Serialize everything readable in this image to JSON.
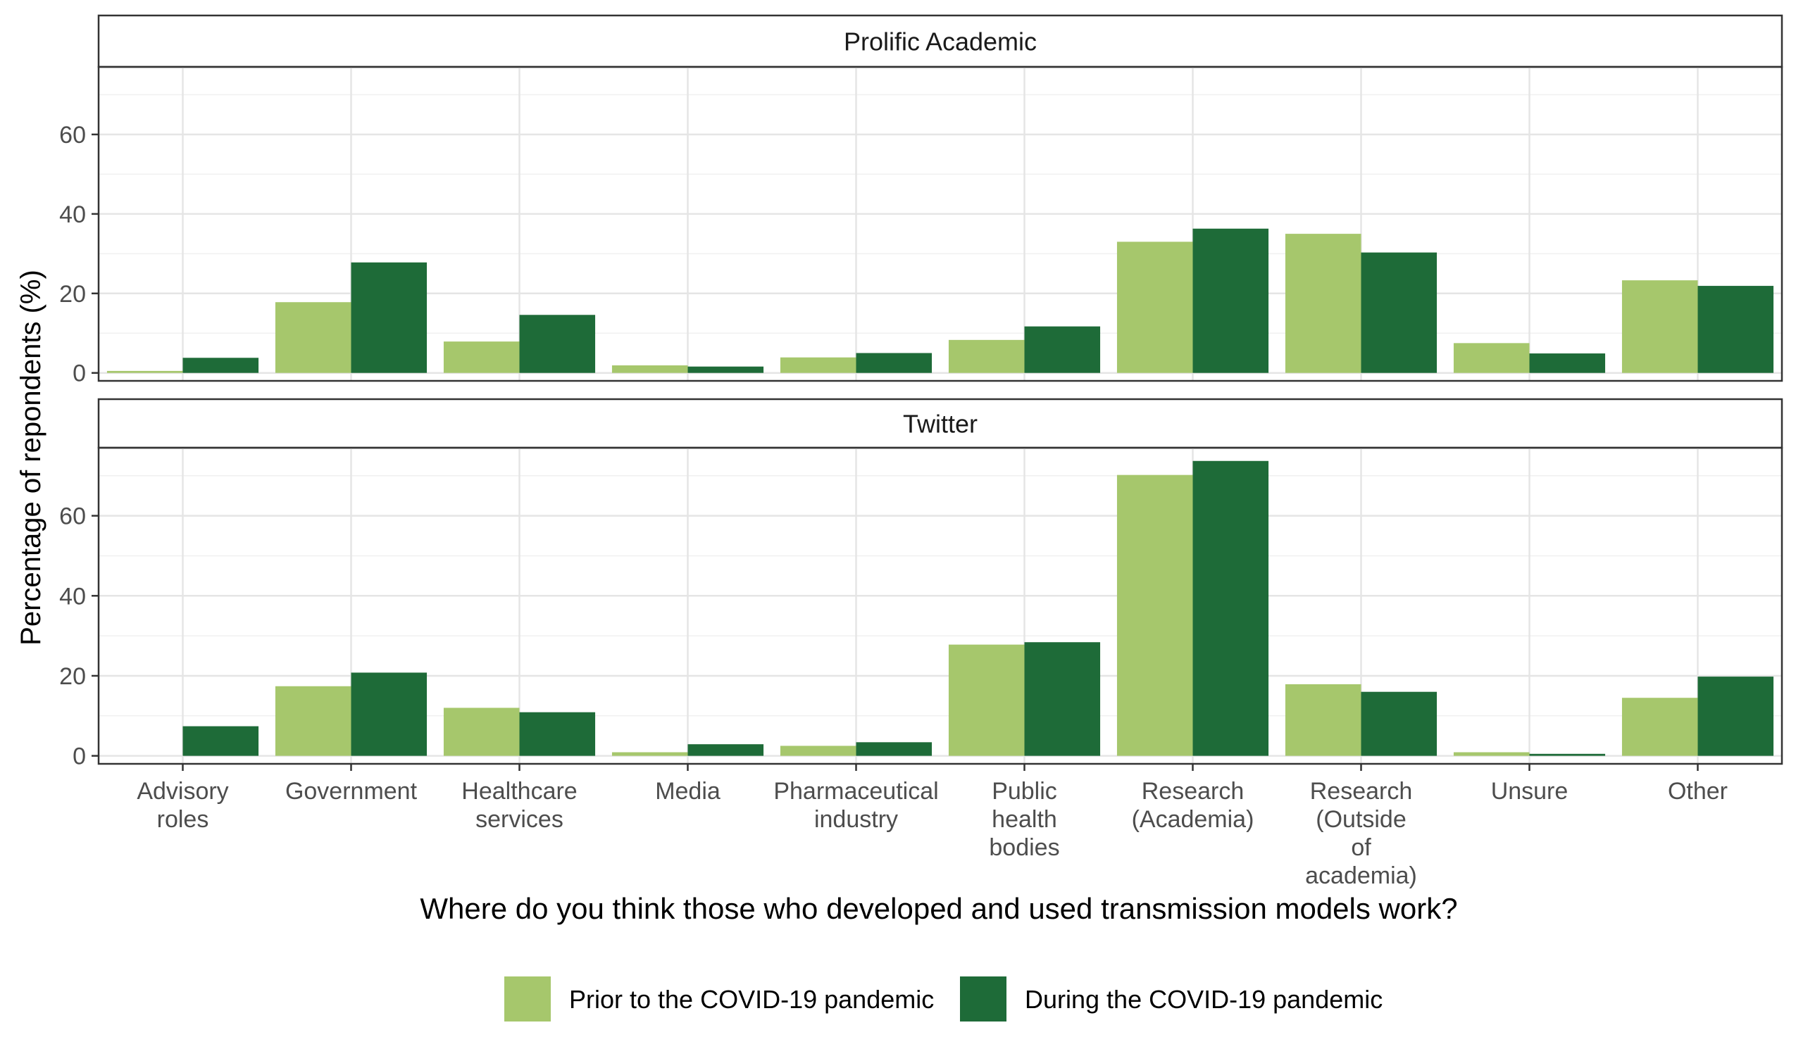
{
  "chart_data": {
    "type": "bar",
    "ylabel": "Percentage of repondents (%)",
    "xlabel": "Where do you think those who developed and used transmission models work?",
    "categories": [
      [
        "Advisory",
        "roles"
      ],
      [
        "Government"
      ],
      [
        "Healthcare",
        "services"
      ],
      [
        "Media"
      ],
      [
        "Pharmaceutical",
        "industry"
      ],
      [
        "Public",
        "health",
        "bodies"
      ],
      [
        "Research",
        "(Academia)"
      ],
      [
        "Research",
        "(Outside",
        "of",
        "academia)"
      ],
      [
        "Unsure"
      ],
      [
        "Other"
      ]
    ],
    "y_ticks": [
      0,
      20,
      40,
      60
    ],
    "ylim": [
      -2,
      77
    ],
    "grid": true,
    "legend_position": "bottom",
    "series_names": [
      "Prior to the COVID-19 pandemic",
      "During the COVID-19 pandemic"
    ],
    "colors": [
      "#a6c76c",
      "#1e6b38"
    ],
    "panels": [
      {
        "title": "Prolific Academic",
        "series": [
          {
            "name": "Prior to the COVID-19 pandemic",
            "values": [
              0.5,
              17.8,
              7.9,
              1.9,
              3.9,
              8.3,
              33.0,
              35.0,
              7.5,
              23.3
            ]
          },
          {
            "name": "During the COVID-19 pandemic",
            "values": [
              3.8,
              27.8,
              14.6,
              1.6,
              5.0,
              11.7,
              36.3,
              30.3,
              4.9,
              21.9
            ]
          }
        ]
      },
      {
        "title": "Twitter",
        "series": [
          {
            "name": "Prior to the COVID-19 pandemic",
            "values": [
              0,
              17.4,
              12.0,
              0.9,
              2.5,
              27.8,
              70.2,
              17.9,
              0.9,
              14.5
            ]
          },
          {
            "name": "During the COVID-19 pandemic",
            "values": [
              7.4,
              20.8,
              10.9,
              2.9,
              3.4,
              28.4,
              73.7,
              16.0,
              0.5,
              19.8
            ]
          }
        ]
      }
    ]
  }
}
